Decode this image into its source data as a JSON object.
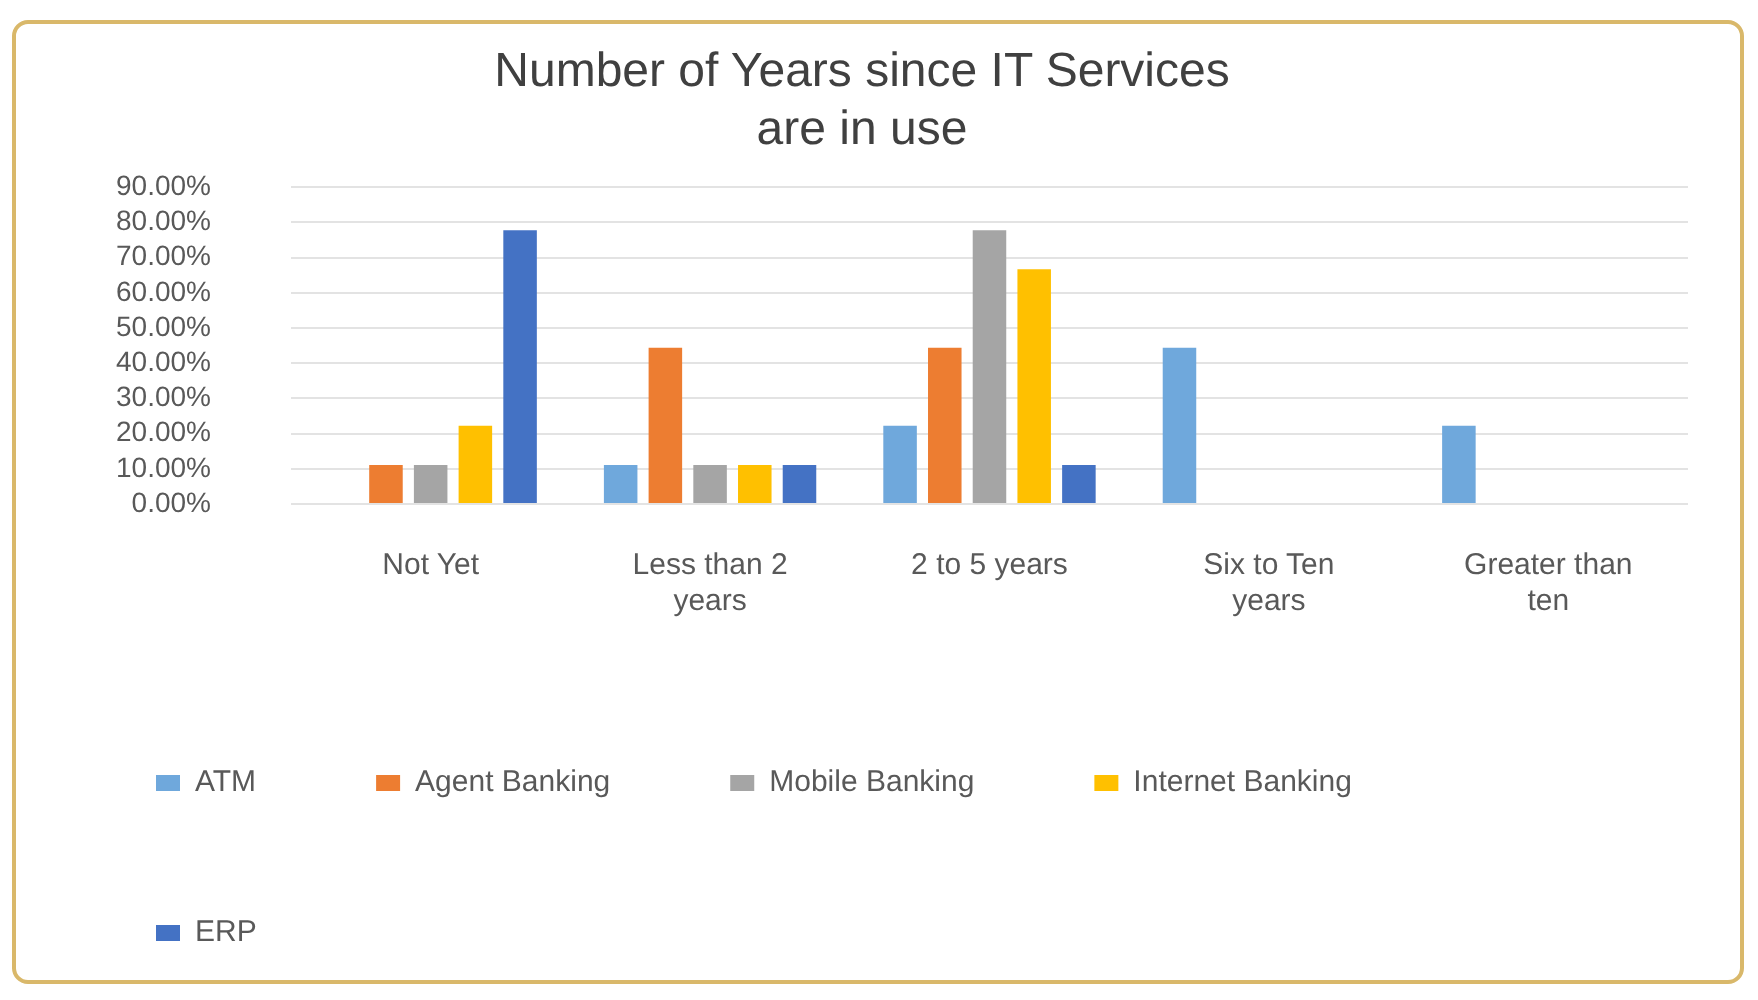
{
  "chart_data": {
    "type": "bar",
    "title": "Number of Years since IT Services are in use",
    "categories": [
      "Not Yet",
      "Less than 2 years",
      "2 to 5 years",
      "Six to Ten years",
      "Greater than ten"
    ],
    "series": [
      {
        "name": "ATM",
        "color": "#6fa8dc",
        "values": [
          0,
          11.1,
          22.2,
          44.4,
          22.2
        ]
      },
      {
        "name": "Agent Banking",
        "color": "#ed7d31",
        "values": [
          11.1,
          44.4,
          44.4,
          0,
          0
        ]
      },
      {
        "name": "Mobile Banking",
        "color": "#a5a5a5",
        "values": [
          11.1,
          11.1,
          77.8,
          0,
          0
        ]
      },
      {
        "name": "Internet Banking",
        "color": "#ffc000",
        "values": [
          22.2,
          11.1,
          66.7,
          0,
          0
        ]
      },
      {
        "name": "ERP",
        "color": "#4472c4",
        "values": [
          77.8,
          11.1,
          11.1,
          0,
          0
        ]
      }
    ],
    "ylim": [
      0,
      90
    ],
    "yticks": [
      {
        "value": 0,
        "label": "0.00%"
      },
      {
        "value": 10,
        "label": "10.00%"
      },
      {
        "value": 20,
        "label": "20.00%"
      },
      {
        "value": 30,
        "label": "30.00%"
      },
      {
        "value": 40,
        "label": "40.00%"
      },
      {
        "value": 50,
        "label": "50.00%"
      },
      {
        "value": 60,
        "label": "60.00%"
      },
      {
        "value": 70,
        "label": "70.00%"
      },
      {
        "value": 80,
        "label": "80.00%"
      },
      {
        "value": 90,
        "label": "90.00%"
      }
    ],
    "grid": "y",
    "legend": "bottom"
  }
}
